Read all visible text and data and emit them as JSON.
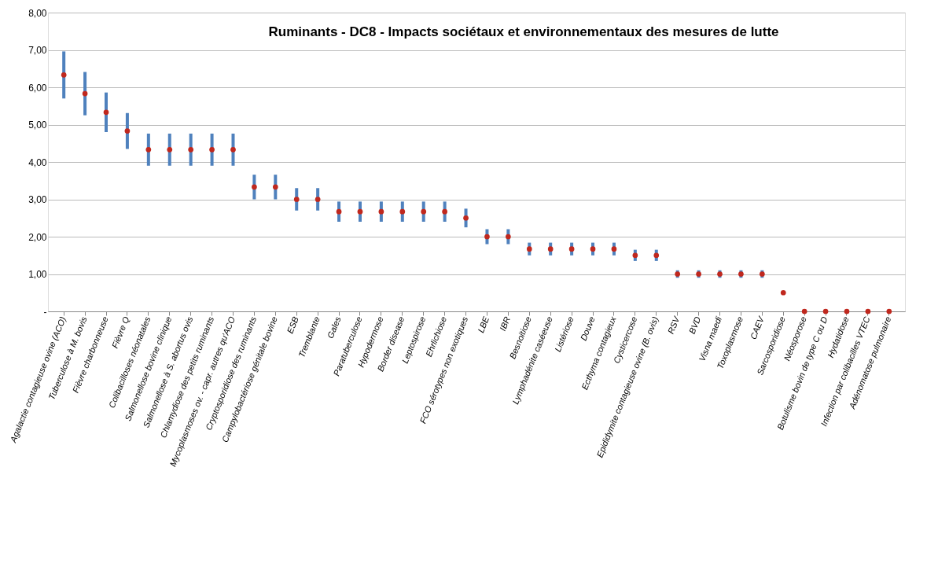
{
  "chart_data": {
    "type": "scatter",
    "title": "Ruminants - DC8 - Impacts sociétaux et environnementaux des mesures de lutte",
    "categories": [
      "Agalactie contagieuse ovine (ACO)",
      "Tuberculose à M. bovis",
      "Fièvre charbonneuse",
      "Fièvre Q",
      "Colibacilloses néonatales",
      "Salmonellose bovine clinique",
      "Salmonellose à S. abortus ovis",
      "Chlamydiose des petits ruminants",
      "Mycoplasmoses ov. - capr. autres qu'ACO",
      "Cryptosporidiose des ruminants",
      "Campylobactériose génitale bovine",
      "ESB",
      "Tremblante",
      "Gales",
      "Paratuberculose",
      "Hypodermose",
      "Border disease",
      "Leptospirose",
      "Ehrlichiose",
      "FCO sérotypes non exotiques",
      "LBE",
      "IBR",
      "Besnoitiose",
      "Lymphadénite caséeuse",
      "Listériose",
      "Douve",
      "Ecthyma contagieux",
      "Cysticercose",
      "Epididymite contagieuse ovine (B. ovis)",
      "RSV",
      "BVD",
      "Visna maedi",
      "Toxoplasmose",
      "CAEV",
      "Sarcosporidiose",
      "Néosporose",
      "Botulisme bovin de type C ou D",
      "Hydatidose",
      "Infection par colibacilles VTEC",
      "Adénomatose pulmonaire"
    ],
    "series": [
      {
        "color": "#c0281e",
        "values": [
          6.33,
          5.83,
          5.33,
          4.83,
          4.33,
          4.33,
          4.33,
          4.33,
          4.33,
          3.33,
          3.33,
          3.0,
          3.0,
          2.67,
          2.67,
          2.67,
          2.67,
          2.67,
          2.67,
          2.5,
          2.0,
          2.0,
          1.67,
          1.67,
          1.67,
          1.67,
          1.67,
          1.5,
          1.5,
          1.0,
          1.0,
          1.0,
          1.0,
          1.0,
          0.5,
          0,
          0,
          0,
          0,
          0
        ],
        "errors": [
          0.63,
          0.58,
          0.53,
          0.48,
          0.43,
          0.43,
          0.43,
          0.43,
          0.43,
          0.33,
          0.33,
          0.3,
          0.3,
          0.27,
          0.27,
          0.27,
          0.27,
          0.27,
          0.27,
          0.25,
          0.2,
          0.2,
          0.17,
          0.17,
          0.17,
          0.17,
          0.17,
          0.15,
          0.15,
          0.1,
          0.1,
          0.1,
          0.1,
          0.1,
          null,
          null,
          null,
          null,
          null,
          null
        ]
      }
    ],
    "ylim": [
      0,
      8
    ],
    "yticks": [
      {
        "value": 0,
        "label": "-"
      },
      {
        "value": 1,
        "label": "1,00"
      },
      {
        "value": 2,
        "label": "2,00"
      },
      {
        "value": 3,
        "label": "3,00"
      },
      {
        "value": 4,
        "label": "4,00"
      },
      {
        "value": 5,
        "label": "5,00"
      },
      {
        "value": 6,
        "label": "6,00"
      },
      {
        "value": 7,
        "label": "7,00"
      },
      {
        "value": 8,
        "label": "8,00"
      }
    ],
    "grid": "y",
    "marker": "circle"
  }
}
